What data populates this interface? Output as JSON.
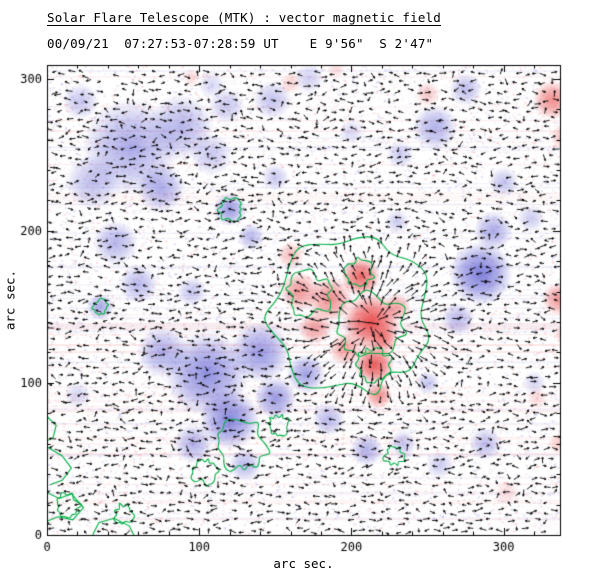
{
  "chart_data": {
    "type": "heatmap",
    "title": "Solar Flare Telescope (MTK) : vector magnetic field",
    "subtitle": "00/09/21  07:27:53-07:28:59 UT    E 9'56\"  S 2'47\"",
    "xlabel": "arc sec.",
    "ylabel": "arc sec.",
    "xlim": [
      0,
      337
    ],
    "ylim": [
      0,
      309
    ],
    "xticks": [
      0,
      100,
      200,
      300
    ],
    "yticks": [
      0,
      100,
      200,
      300
    ],
    "minor_tick_step": 20,
    "grid": false,
    "legend": "none",
    "colors": {
      "positive": "#e63232",
      "negative": "#4646cc",
      "contour": "#00b044",
      "vector": "#000000",
      "frame": "#000000",
      "background": "#ffffff"
    },
    "noise": {
      "seed": 7,
      "speckle_count": 9000,
      "streak_count": 80
    },
    "negative_blobs": [
      [
        55,
        255,
        32,
        0.45
      ],
      [
        88,
        268,
        22,
        0.4
      ],
      [
        30,
        232,
        18,
        0.35
      ],
      [
        75,
        228,
        16,
        0.45
      ],
      [
        108,
        250,
        14,
        0.3
      ],
      [
        118,
        282,
        12,
        0.3
      ],
      [
        45,
        192,
        15,
        0.4
      ],
      [
        60,
        165,
        13,
        0.38
      ],
      [
        35,
        150,
        9,
        0.45
      ],
      [
        22,
        285,
        12,
        0.3
      ],
      [
        148,
        286,
        13,
        0.32
      ],
      [
        172,
        300,
        10,
        0.26
      ],
      [
        120,
        214,
        11,
        0.55
      ],
      [
        134,
        196,
        9,
        0.38
      ],
      [
        255,
        268,
        15,
        0.42
      ],
      [
        275,
        293,
        11,
        0.36
      ],
      [
        232,
        250,
        9,
        0.28
      ],
      [
        285,
        172,
        21,
        0.7
      ],
      [
        293,
        200,
        13,
        0.45
      ],
      [
        270,
        142,
        11,
        0.38
      ],
      [
        300,
        232,
        10,
        0.32
      ],
      [
        318,
        208,
        9,
        0.28
      ],
      [
        105,
        106,
        28,
        0.6
      ],
      [
        140,
        120,
        20,
        0.55
      ],
      [
        76,
        120,
        17,
        0.45
      ],
      [
        120,
        76,
        20,
        0.65
      ],
      [
        150,
        90,
        14,
        0.55
      ],
      [
        96,
        60,
        13,
        0.42
      ],
      [
        170,
        106,
        13,
        0.5
      ],
      [
        185,
        76,
        11,
        0.38
      ],
      [
        210,
        56,
        11,
        0.42
      ],
      [
        234,
        60,
        9,
        0.32
      ],
      [
        258,
        46,
        9,
        0.28
      ],
      [
        288,
        60,
        11,
        0.36
      ],
      [
        130,
        46,
        11,
        0.38
      ],
      [
        230,
        206,
        8,
        0.28
      ],
      [
        20,
        92,
        9,
        0.22
      ],
      [
        250,
        100,
        8,
        0.3
      ],
      [
        150,
        235,
        9,
        0.3
      ],
      [
        95,
        160,
        10,
        0.3
      ],
      [
        200,
        265,
        8,
        0.22
      ],
      [
        320,
        100,
        8,
        0.22
      ],
      [
        108,
        296,
        9,
        0.22
      ]
    ],
    "positive_blobs": [
      [
        213,
        140,
        19,
        0.85
      ],
      [
        215,
        112,
        13,
        0.8
      ],
      [
        218,
        92,
        9,
        0.55
      ],
      [
        206,
        170,
        13,
        0.75
      ],
      [
        186,
        155,
        15,
        0.55
      ],
      [
        166,
        160,
        13,
        0.5
      ],
      [
        176,
        136,
        11,
        0.45
      ],
      [
        196,
        122,
        11,
        0.45
      ],
      [
        160,
        184,
        9,
        0.32
      ],
      [
        230,
        150,
        9,
        0.45
      ],
      [
        222,
        128,
        9,
        0.5
      ],
      [
        332,
        286,
        13,
        0.55
      ],
      [
        340,
        262,
        9,
        0.35
      ],
      [
        336,
        155,
        11,
        0.5
      ],
      [
        340,
        132,
        7,
        0.3
      ],
      [
        336,
        60,
        7,
        0.25
      ],
      [
        160,
        297,
        7,
        0.22
      ],
      [
        250,
        290,
        8,
        0.28
      ],
      [
        95,
        301,
        6,
        0.18
      ],
      [
        302,
        28,
        8,
        0.18
      ],
      [
        322,
        90,
        7,
        0.18
      ],
      [
        190,
        306,
        6,
        0.18
      ]
    ],
    "contour_loops": [
      [
        197,
        143,
        52,
        0.18
      ],
      [
        213,
        138,
        21,
        0.25
      ],
      [
        214,
        112,
        11,
        0.3
      ],
      [
        172,
        158,
        14,
        0.3
      ],
      [
        205,
        172,
        9,
        0.3
      ],
      [
        120,
        214,
        7,
        0.3
      ],
      [
        35,
        150,
        5,
        0.3
      ],
      [
        128,
        58,
        16,
        0.35
      ],
      [
        103,
        42,
        8,
        0.35
      ],
      [
        152,
        72,
        7,
        0.35
      ],
      [
        228,
        52,
        6,
        0.35
      ],
      [
        50,
        14,
        6,
        0.4
      ],
      [
        14,
        20,
        7,
        0.4
      ]
    ],
    "contour_paths": [
      [
        [
          0,
          58
        ],
        [
          10,
          52
        ],
        [
          16,
          44
        ],
        [
          10,
          36
        ],
        [
          2,
          33
        ]
      ],
      [
        [
          0,
          28
        ],
        [
          8,
          24
        ],
        [
          16,
          27
        ],
        [
          24,
          18
        ],
        [
          17,
          10
        ],
        [
          7,
          12
        ],
        [
          0,
          9
        ]
      ],
      [
        [
          30,
          0
        ],
        [
          34,
          8
        ],
        [
          44,
          11
        ],
        [
          54,
          6
        ],
        [
          57,
          0
        ]
      ],
      [
        [
          0,
          78
        ],
        [
          6,
          72
        ],
        [
          4,
          64
        ],
        [
          0,
          62
        ]
      ]
    ],
    "vectors": {
      "seed": 42,
      "grid_step": 6,
      "active_center": [
        213,
        140
      ],
      "active_radius": 58,
      "skip_prob": 0.12
    }
  }
}
